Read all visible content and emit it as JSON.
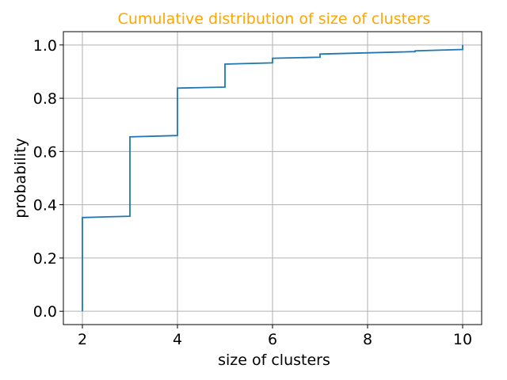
{
  "chart_data": {
    "type": "line",
    "title": "Cumulative distribution of size of clusters",
    "xlabel": "size of clusters",
    "ylabel": "probability",
    "xlim": [
      1.6,
      10.4
    ],
    "ylim": [
      -0.05,
      1.05
    ],
    "x_ticks": [
      2,
      4,
      6,
      8,
      10
    ],
    "x_tick_labels": [
      "2",
      "4",
      "6",
      "8",
      "10"
    ],
    "y_ticks": [
      0.0,
      0.2,
      0.4,
      0.6,
      0.8,
      1.0
    ],
    "y_tick_labels": [
      "0.0",
      "0.2",
      "0.4",
      "0.6",
      "0.8",
      "1.0"
    ],
    "grid": true,
    "series": [
      {
        "points": [
          [
            2,
            0.0
          ],
          [
            2,
            0.352
          ],
          [
            3,
            0.357
          ],
          [
            3,
            0.655
          ],
          [
            4,
            0.66
          ],
          [
            4,
            0.838
          ],
          [
            5,
            0.842
          ],
          [
            5,
            0.928
          ],
          [
            6,
            0.933
          ],
          [
            6,
            0.95
          ],
          [
            7,
            0.954
          ],
          [
            7,
            0.966
          ],
          [
            9,
            0.975
          ],
          [
            9,
            0.978
          ],
          [
            10,
            0.983
          ],
          [
            10,
            1.0
          ]
        ]
      }
    ],
    "colors": {
      "title": "#ffa500",
      "line": "#1f77b4"
    }
  }
}
